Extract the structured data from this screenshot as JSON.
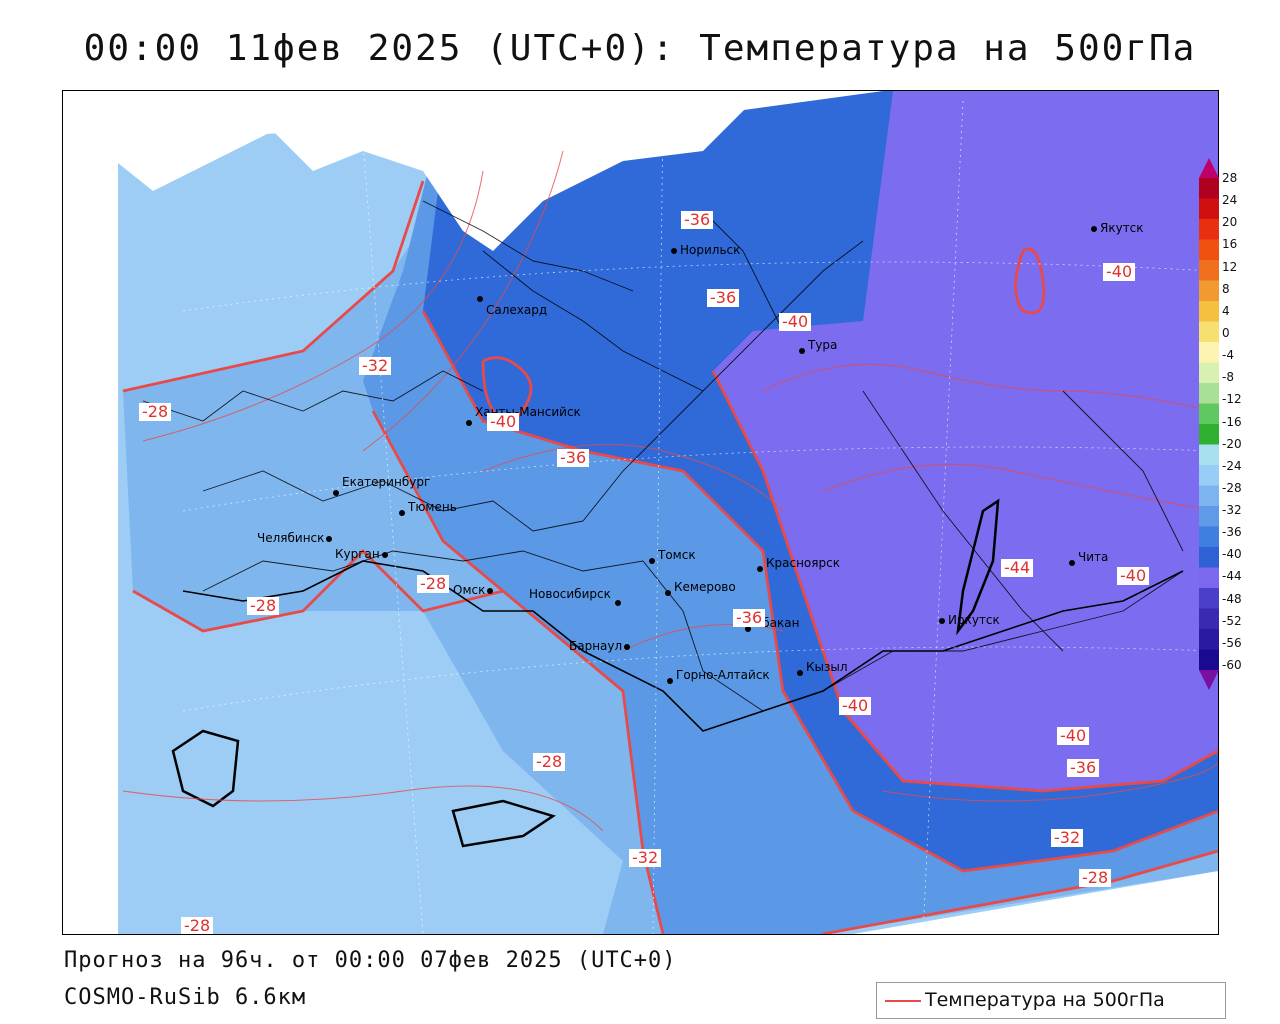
{
  "title": "00:00 11фев 2025 (UTC+0): Температура на 500гПа",
  "footer": {
    "forecast": "Прогноз на 96ч. от 00:00 07фев 2025 (UTC+0)",
    "model": "COSMO-RuSib 6.6км"
  },
  "legend": {
    "label": "Температура на 500гПа",
    "line_color": "#e84a4a"
  },
  "colorbar": {
    "ticks": [
      "28",
      "24",
      "20",
      "16",
      "12",
      "8",
      "4",
      "0",
      "-4",
      "-8",
      "-12",
      "-16",
      "-20",
      "-24",
      "-28",
      "-32",
      "-36",
      "-40",
      "-44",
      "-48",
      "-52",
      "-56",
      "-60"
    ],
    "colors": [
      "#c0006a",
      "#b00020",
      "#d01010",
      "#e83010",
      "#f05010",
      "#f07020",
      "#f09a30",
      "#f5c040",
      "#f8e070",
      "#fcf4b0",
      "#d8f0b0",
      "#a8e098",
      "#60c860",
      "#30b030",
      "#a8e0f0",
      "#98cef5",
      "#7db4f0",
      "#5e9ae8",
      "#3f7fe0",
      "#2e62d4",
      "#7b68ee",
      "#4a3fc8",
      "#3a2ab0",
      "#2a1aa0",
      "#1a0a90",
      "#7a10a0"
    ]
  },
  "cities": [
    {
      "name": "Якутск"
    },
    {
      "name": "Норильск"
    },
    {
      "name": "Салехард"
    },
    {
      "name": "Тура"
    },
    {
      "name": "Ханты-Мансийск"
    },
    {
      "name": "Екатеринбург"
    },
    {
      "name": "Тюмень"
    },
    {
      "name": "Челябинск"
    },
    {
      "name": "Курган"
    },
    {
      "name": "Омск"
    },
    {
      "name": "Новосибирск"
    },
    {
      "name": "Томск"
    },
    {
      "name": "Кемерово"
    },
    {
      "name": "Красноярск"
    },
    {
      "name": "Абакан"
    },
    {
      "name": "Барнаул"
    },
    {
      "name": "Горно-Алтайск"
    },
    {
      "name": "Кызыл"
    },
    {
      "name": "Иркутск"
    },
    {
      "name": "Чита"
    }
  ],
  "contour_labels": [
    "-36",
    "-36",
    "-40",
    "-40",
    "-32",
    "-28",
    "-40",
    "-36",
    "-44",
    "-40",
    "-28",
    "-28",
    "-36",
    "-40",
    "-40",
    "-36",
    "-28",
    "-32",
    "-32",
    "-28",
    "-28"
  ]
}
